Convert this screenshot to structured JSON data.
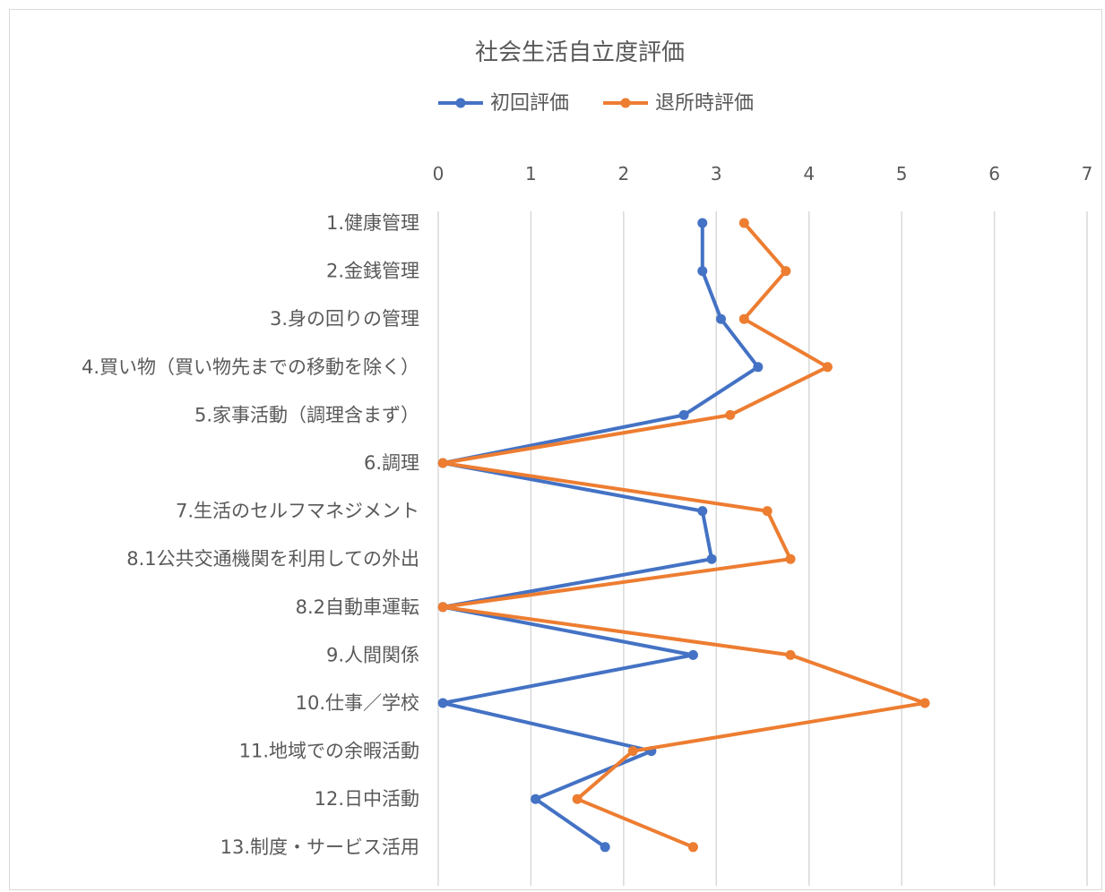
{
  "chart_data": {
    "type": "line",
    "orientation": "horizontal",
    "title": "社会生活自立度評価",
    "xlim": [
      0,
      7
    ],
    "x_ticks": [
      "0",
      "1",
      "2",
      "3",
      "4",
      "5",
      "6",
      "7"
    ],
    "x_axis_position": "top",
    "grid": true,
    "legend_position": "top",
    "categories": [
      "1.健康管理",
      "2.金銭管理",
      "3.身の回りの管理",
      "4.買い物（買い物先までの移動を除く）",
      "5.家事活動（調理含まず）",
      "6.調理",
      "7.生活のセルフマネジメント",
      "8.1公共交通機関を利用しての外出",
      "8.2自動車運転",
      "9.人間関係",
      "10.仕事／学校",
      "11.地域での余暇活動",
      "12.日中活動",
      "13.制度・サービス活用"
    ],
    "series": [
      {
        "name": "初回評価",
        "color": "#4472c4",
        "values": [
          2.85,
          2.85,
          3.05,
          3.45,
          2.65,
          0.05,
          2.85,
          2.95,
          0.05,
          2.75,
          0.05,
          2.3,
          1.05,
          1.8
        ]
      },
      {
        "name": "退所時評価",
        "color": "#ed7d31",
        "values": [
          3.3,
          3.75,
          3.3,
          4.2,
          3.15,
          0.05,
          3.55,
          3.8,
          0.05,
          3.8,
          5.25,
          2.1,
          1.5,
          2.75
        ]
      }
    ]
  }
}
